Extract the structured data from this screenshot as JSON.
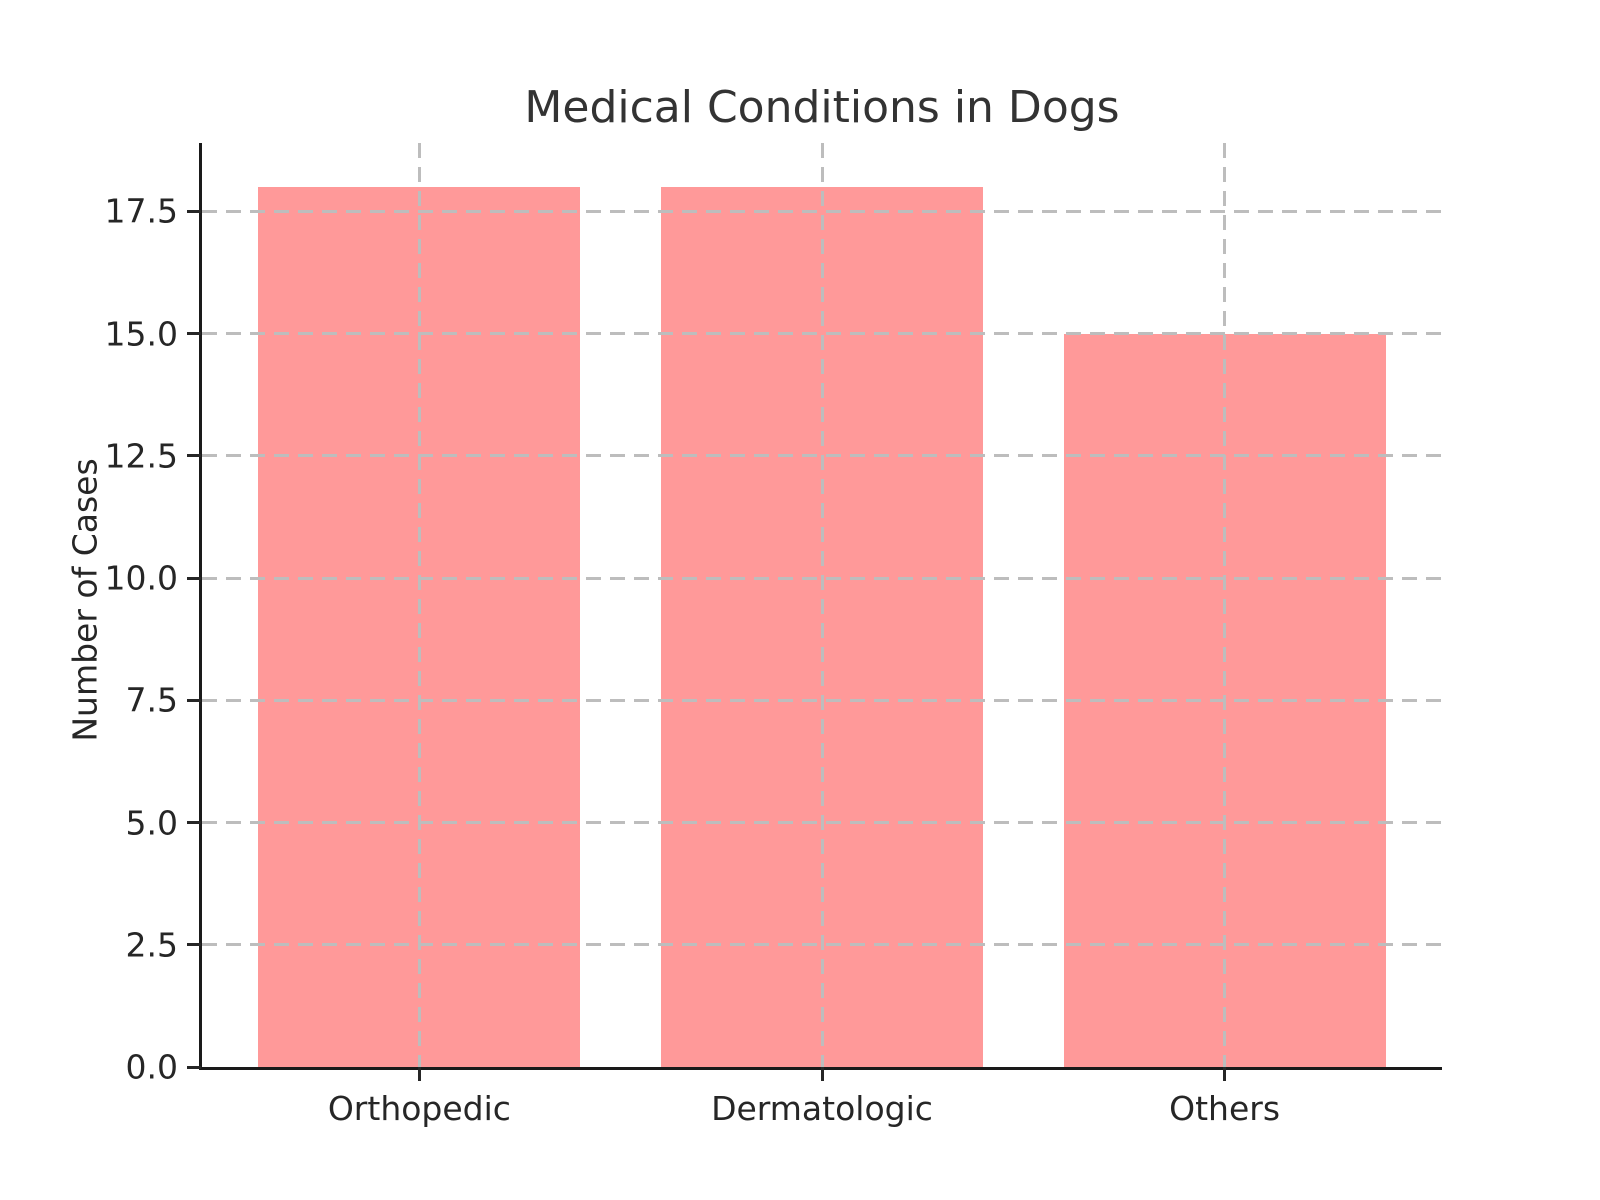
{
  "chart_data": {
    "type": "bar",
    "title": "Medical Conditions in Dogs",
    "xlabel": "",
    "ylabel": "Number of Cases",
    "categories": [
      "Orthopedic",
      "Dermatologic",
      "Others"
    ],
    "values": [
      18,
      18,
      15
    ],
    "ylim": [
      0,
      18.9
    ],
    "xlim": [
      -0.54,
      2.54
    ],
    "yticks": [
      0.0,
      2.5,
      5.0,
      7.5,
      10.0,
      12.5,
      15.0,
      17.5
    ],
    "ytick_labels": [
      "0.0",
      "2.5",
      "5.0",
      "7.5",
      "10.0",
      "12.5",
      "15.0",
      "17.5"
    ],
    "bar_color": "#FF9999",
    "bar_width_units": 0.8,
    "grid": "both",
    "grid_style": "dashed",
    "grid_color": "#BDBDBD",
    "legend": "none",
    "spines": [
      "left",
      "bottom"
    ]
  }
}
